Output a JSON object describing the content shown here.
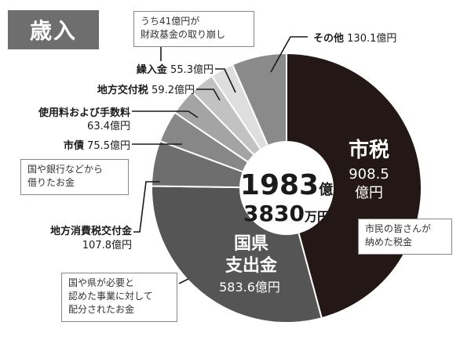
{
  "title": "歳入",
  "center": {
    "line1": "1983",
    "unit1": "億",
    "line2": "3830",
    "unit2": "万円"
  },
  "notes": {
    "city_tax": [
      "市民の皆さんが",
      "納めた税金"
    ],
    "transfer": [
      "うち41億円が",
      "財政基金の取り崩し"
    ],
    "bond": [
      "国や銀行などから",
      "借りたお金"
    ],
    "grant": [
      "国や県が必要と",
      "認めた事業に対して",
      "配分されたお金"
    ]
  },
  "colors": {
    "city_tax": "#231815",
    "grant": "#555555",
    "consumption": "#6e6e6e",
    "bond": "#878787",
    "fees": "#a4a4a4",
    "local_alloc": "#c2c2c2",
    "transfer": "#dedede",
    "other": "#8a8a8a",
    "title_bg": "#6e6e6e"
  },
  "chart_data": {
    "type": "pie",
    "unit": "億円",
    "slices": [
      {
        "key": "city_tax",
        "name": "市税",
        "value": 908.5,
        "value_label": "908.5",
        "unit": "億円"
      },
      {
        "key": "grant",
        "name": "国県支出金",
        "name_lines": [
          "国県",
          "支出金"
        ],
        "value": 583.6,
        "value_label": "583.6億円"
      },
      {
        "key": "consumption",
        "name": "地方消費税交付金",
        "value": 107.8,
        "value_label": "107.8億円"
      },
      {
        "key": "bond",
        "name": "市債",
        "value": 75.5,
        "value_label": "75.5億円"
      },
      {
        "key": "fees",
        "name": "使用料および手数料",
        "value": 63.4,
        "value_label": "63.4億円"
      },
      {
        "key": "local_alloc",
        "name": "地方交付税",
        "value": 59.2,
        "value_label": "59.2億円"
      },
      {
        "key": "transfer",
        "name": "繰入金",
        "value": 55.3,
        "value_label": "55.3億円"
      },
      {
        "key": "other",
        "name": "その他",
        "value": 130.1,
        "value_label": "130.1億円"
      }
    ]
  }
}
